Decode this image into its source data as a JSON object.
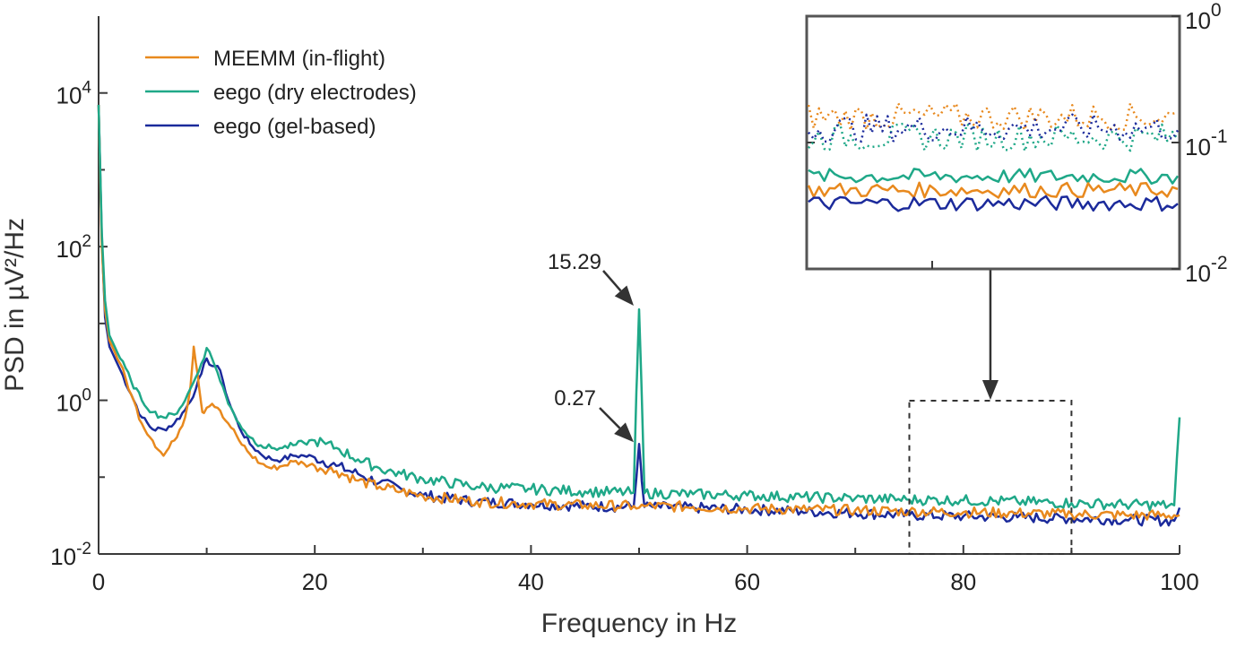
{
  "chart_data": {
    "type": "line",
    "xlabel": "Frequency in Hz",
    "ylabel": "PSD in µV²/Hz",
    "xlim": [
      0,
      100
    ],
    "ylim": [
      0.01,
      100000
    ],
    "yscale": "log",
    "x_ticks": [
      "0",
      "20",
      "40",
      "60",
      "80",
      "100"
    ],
    "y_ticks": [
      {
        "base": "10",
        "exp": "-2"
      },
      {
        "base": "10",
        "exp": "0"
      },
      {
        "base": "10",
        "exp": "2"
      },
      {
        "base": "10",
        "exp": "4"
      }
    ],
    "legend_position": "top-left",
    "series": [
      {
        "name": "MEEMM (in-flight)",
        "color": "#e8891e",
        "points": [
          [
            0,
            7000
          ],
          [
            0.3,
            100
          ],
          [
            0.6,
            15
          ],
          [
            1,
            6
          ],
          [
            2,
            3
          ],
          [
            3,
            1.2
          ],
          [
            4,
            0.5
          ],
          [
            5,
            0.3
          ],
          [
            6,
            0.19
          ],
          [
            7,
            0.3
          ],
          [
            8,
            0.6
          ],
          [
            8.5,
            1.5
          ],
          [
            8.8,
            5
          ],
          [
            9.2,
            2
          ],
          [
            9.6,
            0.7
          ],
          [
            10,
            0.8
          ],
          [
            10.5,
            0.9
          ],
          [
            11,
            0.8
          ],
          [
            11.5,
            0.6
          ],
          [
            12,
            0.5
          ],
          [
            13,
            0.3
          ],
          [
            14,
            0.2
          ],
          [
            15,
            0.15
          ],
          [
            16,
            0.13
          ],
          [
            17,
            0.14
          ],
          [
            18,
            0.16
          ],
          [
            19,
            0.15
          ],
          [
            20,
            0.14
          ],
          [
            22,
            0.12
          ],
          [
            24,
            0.09
          ],
          [
            26,
            0.075
          ],
          [
            28,
            0.065
          ],
          [
            30,
            0.057
          ],
          [
            35,
            0.048
          ],
          [
            40,
            0.045
          ],
          [
            45,
            0.043
          ],
          [
            49.5,
            0.042
          ],
          [
            50,
            0.04
          ],
          [
            50.5,
            0.042
          ],
          [
            55,
            0.041
          ],
          [
            60,
            0.039
          ],
          [
            65,
            0.038
          ],
          [
            70,
            0.037
          ],
          [
            75,
            0.036
          ],
          [
            80,
            0.035
          ],
          [
            85,
            0.034
          ],
          [
            90,
            0.033
          ],
          [
            95,
            0.032
          ],
          [
            100,
            0.032
          ]
        ]
      },
      {
        "name": "eego (dry electrodes)",
        "color": "#1fa888",
        "points": [
          [
            0,
            7000
          ],
          [
            0.3,
            150
          ],
          [
            0.6,
            20
          ],
          [
            1,
            7
          ],
          [
            2,
            3.5
          ],
          [
            3,
            1.8
          ],
          [
            4,
            1
          ],
          [
            5,
            0.7
          ],
          [
            6,
            0.6
          ],
          [
            7,
            0.65
          ],
          [
            8,
            1
          ],
          [
            9,
            2
          ],
          [
            9.5,
            3
          ],
          [
            10,
            4.8
          ],
          [
            10.5,
            3.5
          ],
          [
            11,
            2.3
          ],
          [
            11.5,
            1.5
          ],
          [
            12,
            0.9
          ],
          [
            13,
            0.5
          ],
          [
            14,
            0.33
          ],
          [
            15,
            0.26
          ],
          [
            16,
            0.24
          ],
          [
            17,
            0.24
          ],
          [
            18,
            0.26
          ],
          [
            19,
            0.28
          ],
          [
            20,
            0.3
          ],
          [
            21,
            0.27
          ],
          [
            22,
            0.24
          ],
          [
            24,
            0.17
          ],
          [
            26,
            0.13
          ],
          [
            28,
            0.11
          ],
          [
            30,
            0.095
          ],
          [
            35,
            0.075
          ],
          [
            40,
            0.07
          ],
          [
            45,
            0.065
          ],
          [
            49.5,
            0.063
          ],
          [
            49.8,
            2
          ],
          [
            50,
            15.29
          ],
          [
            50.2,
            2
          ],
          [
            50.5,
            0.062
          ],
          [
            55,
            0.06
          ],
          [
            60,
            0.058
          ],
          [
            65,
            0.055
          ],
          [
            70,
            0.053
          ],
          [
            75,
            0.051
          ],
          [
            80,
            0.05
          ],
          [
            85,
            0.048
          ],
          [
            90,
            0.046
          ],
          [
            95,
            0.044
          ],
          [
            99.5,
            0.043
          ],
          [
            100,
            0.6
          ]
        ]
      },
      {
        "name": "eego (gel-based)",
        "color": "#1b2a9b",
        "points": [
          [
            0,
            7000
          ],
          [
            0.3,
            120
          ],
          [
            0.6,
            12
          ],
          [
            1,
            5
          ],
          [
            2,
            2.5
          ],
          [
            3,
            1.2
          ],
          [
            4,
            0.6
          ],
          [
            5,
            0.42
          ],
          [
            6,
            0.42
          ],
          [
            7,
            0.5
          ],
          [
            8,
            0.75
          ],
          [
            9,
            1.4
          ],
          [
            9.5,
            2.2
          ],
          [
            10,
            3.5
          ],
          [
            10.5,
            2.8
          ],
          [
            11,
            2.8
          ],
          [
            11.5,
            1.8
          ],
          [
            12,
            1
          ],
          [
            13,
            0.45
          ],
          [
            14,
            0.27
          ],
          [
            15,
            0.2
          ],
          [
            16,
            0.17
          ],
          [
            17,
            0.17
          ],
          [
            18,
            0.19
          ],
          [
            19,
            0.19
          ],
          [
            20,
            0.18
          ],
          [
            22,
            0.14
          ],
          [
            24,
            0.11
          ],
          [
            26,
            0.085
          ],
          [
            28,
            0.07
          ],
          [
            30,
            0.058
          ],
          [
            35,
            0.048
          ],
          [
            40,
            0.045
          ],
          [
            45,
            0.042
          ],
          [
            49.5,
            0.041
          ],
          [
            49.8,
            0.12
          ],
          [
            50,
            0.27
          ],
          [
            50.2,
            0.12
          ],
          [
            50.5,
            0.041
          ],
          [
            55,
            0.04
          ],
          [
            60,
            0.038
          ],
          [
            65,
            0.036
          ],
          [
            70,
            0.034
          ],
          [
            75,
            0.032
          ],
          [
            80,
            0.031
          ],
          [
            85,
            0.03
          ],
          [
            90,
            0.029
          ],
          [
            95,
            0.028
          ],
          [
            99.5,
            0.027
          ],
          [
            100,
            0.04
          ]
        ]
      }
    ],
    "annotations": [
      {
        "text": "15.29",
        "x": 50,
        "y": 15.29
      },
      {
        "text": "0.27",
        "x": 50,
        "y": 0.27
      }
    ],
    "zoom_region": {
      "x": [
        75,
        90
      ]
    },
    "inset": {
      "yscale": "log",
      "ylim": [
        0.01,
        1
      ],
      "y_ticks": [
        {
          "base": "10",
          "exp": "0"
        },
        {
          "base": "10",
          "exp": "-1"
        },
        {
          "base": "10",
          "exp": "-2"
        }
      ],
      "series": [
        {
          "color": "#e8891e",
          "style": "dotted",
          "level": 0.16
        },
        {
          "color": "#1fa888",
          "style": "dotted",
          "level": 0.11
        },
        {
          "color": "#1b2a9b",
          "style": "dotted",
          "level": 0.13
        },
        {
          "color": "#1fa888",
          "style": "solid",
          "level": 0.054
        },
        {
          "color": "#e8891e",
          "style": "solid",
          "level": 0.042
        },
        {
          "color": "#1b2a9b",
          "style": "solid",
          "level": 0.033
        }
      ]
    }
  }
}
